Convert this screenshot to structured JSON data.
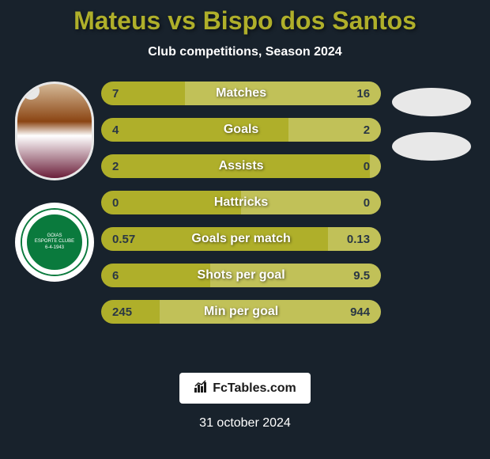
{
  "header": {
    "title": "Mateus vs Bispo dos Santos",
    "subtitle": "Club competitions, Season 2024"
  },
  "club": {
    "name_line1": "GOIAS",
    "name_line2": "ESPORTE CLUBE",
    "date": "6-4-1943"
  },
  "stats": {
    "color_left": "#afaf2a",
    "color_right": "#c1c158",
    "background": "#18222c",
    "text_on_bar": "#2a3744",
    "label_color": "#ffffff",
    "rows": [
      {
        "label": "Matches",
        "left": "7",
        "right": "16",
        "left_pct": 30
      },
      {
        "label": "Goals",
        "left": "4",
        "right": "2",
        "left_pct": 67
      },
      {
        "label": "Assists",
        "left": "2",
        "right": "0",
        "left_pct": 100
      },
      {
        "label": "Hattricks",
        "left": "0",
        "right": "0",
        "left_pct": 50
      },
      {
        "label": "Goals per match",
        "left": "0.57",
        "right": "0.13",
        "left_pct": 81
      },
      {
        "label": "Shots per goal",
        "left": "6",
        "right": "9.5",
        "left_pct": 39
      },
      {
        "label": "Min per goal",
        "left": "245",
        "right": "944",
        "left_pct": 21
      }
    ]
  },
  "footer": {
    "brand": "FcTables.com",
    "date": "31 october 2024"
  }
}
